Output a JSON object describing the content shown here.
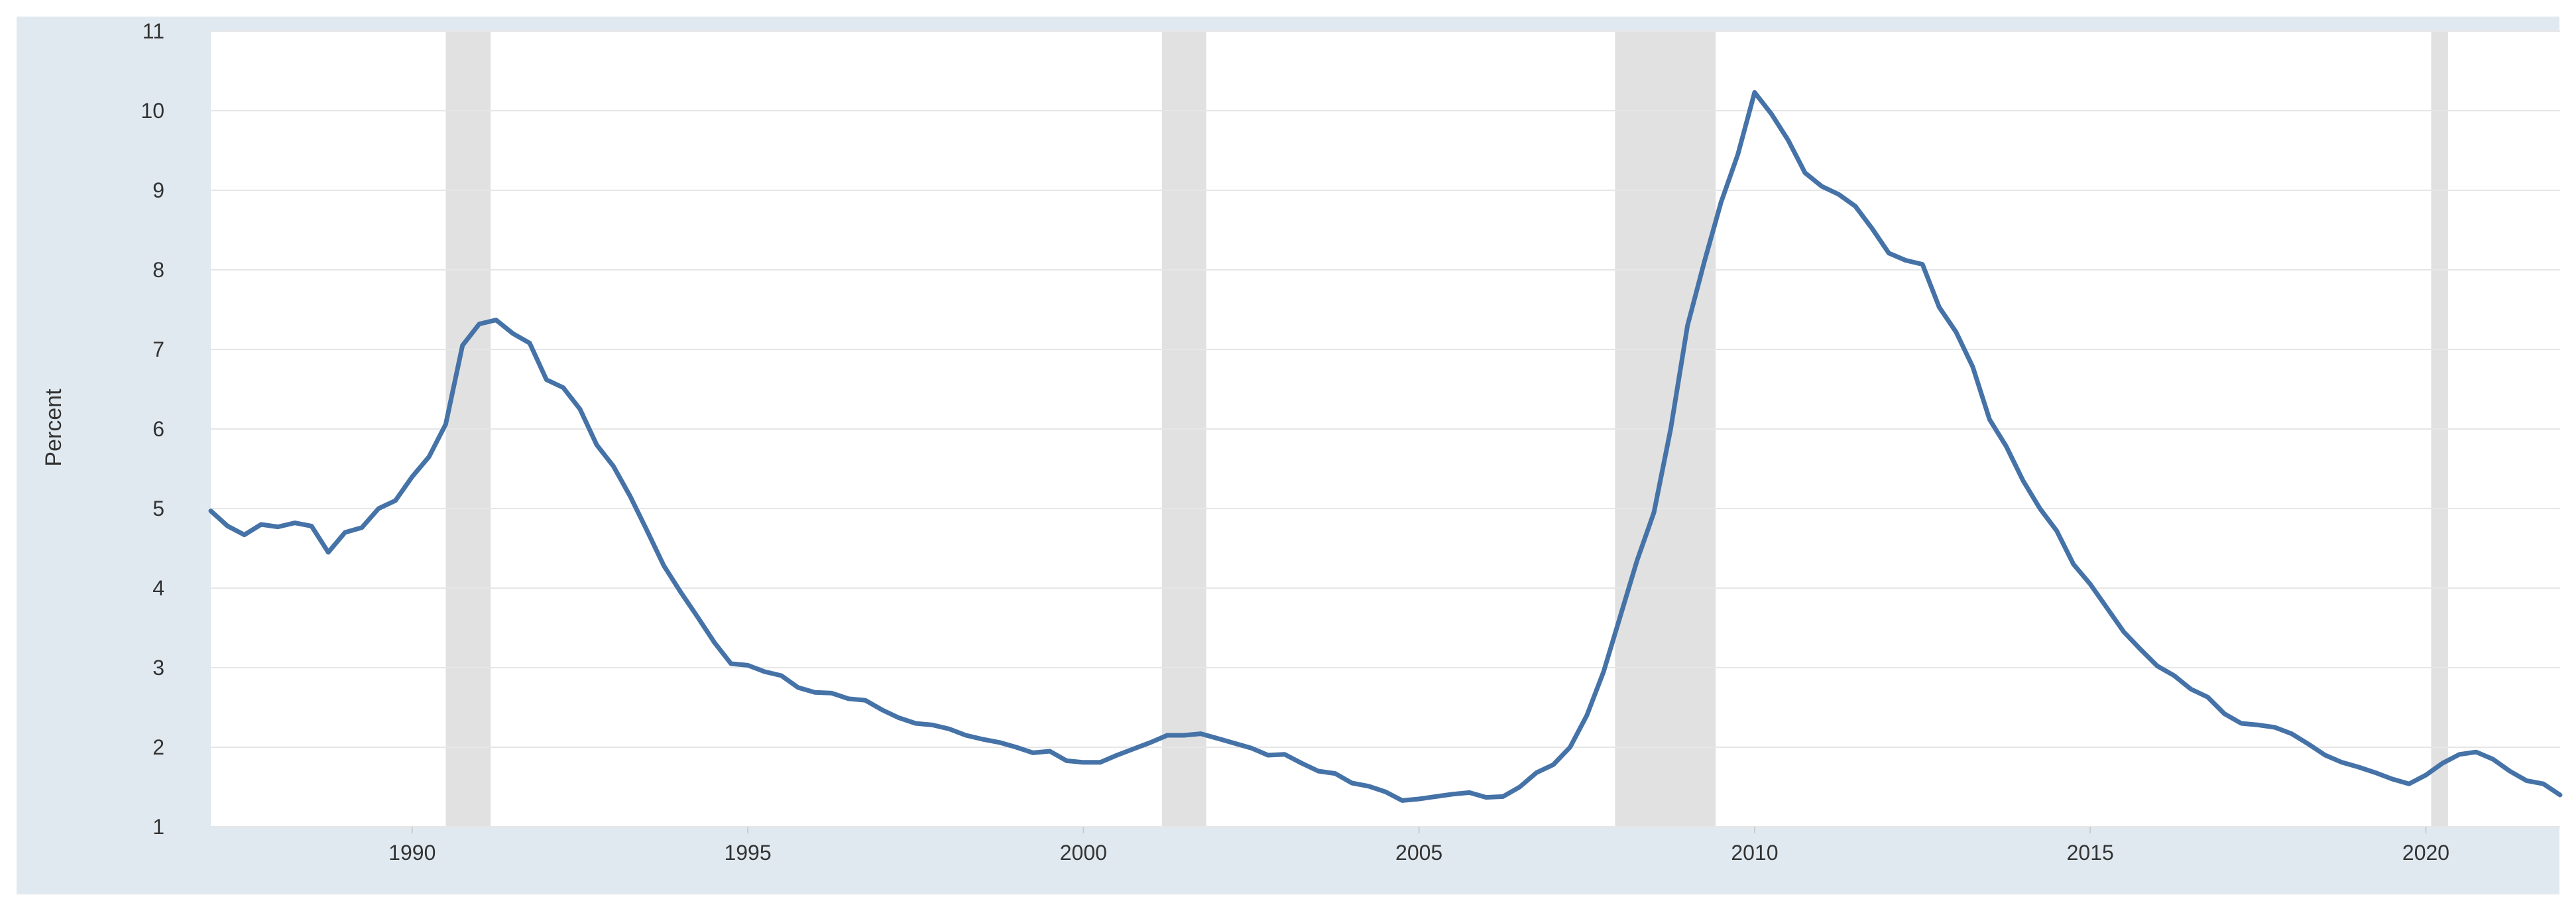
{
  "chart_data": {
    "type": "line",
    "title": "",
    "xlabel": "",
    "ylabel": "Percent",
    "xlim": [
      1987.0,
      2022.0
    ],
    "ylim": [
      1,
      11
    ],
    "grid": true,
    "legend": "none",
    "colors": {
      "line": "#4572a7",
      "recession": "#e1e1e1",
      "frame": "#e1e9f0",
      "grid": "#e6e6e6",
      "plot_bg": "#ffffff"
    },
    "x_ticks": [
      1990,
      1995,
      2000,
      2005,
      2010,
      2015,
      2020
    ],
    "y_ticks": [
      1,
      2,
      3,
      4,
      5,
      6,
      7,
      8,
      9,
      10,
      11
    ],
    "recessions": [
      [
        1990.5,
        1991.17
      ],
      [
        2001.17,
        2001.83
      ],
      [
        2007.92,
        2009.42
      ],
      [
        2020.08,
        2020.33
      ]
    ],
    "series": [
      {
        "x": [
          1987.0,
          1987.25,
          1987.5,
          1987.75,
          1988.0,
          1988.25,
          1988.5,
          1988.75,
          1989.0,
          1989.25,
          1989.5,
          1989.75,
          1990.0,
          1990.25,
          1990.5,
          1990.75,
          1991.0,
          1991.25,
          1991.5,
          1991.75,
          1992.0,
          1992.25,
          1992.5,
          1992.75,
          1993.0,
          1993.25,
          1993.5,
          1993.75,
          1994.0,
          1994.25,
          1994.5,
          1994.75,
          1995.0,
          1995.25,
          1995.5,
          1995.75,
          1996.0,
          1996.25,
          1996.5,
          1996.75,
          1997.0,
          1997.25,
          1997.5,
          1997.75,
          1998.0,
          1998.25,
          1998.5,
          1998.75,
          1999.0,
          1999.25,
          1999.5,
          1999.75,
          2000.0,
          2000.25,
          2000.5,
          2000.75,
          2001.0,
          2001.25,
          2001.5,
          2001.75,
          2002.0,
          2002.25,
          2002.5,
          2002.75,
          2003.0,
          2003.25,
          2003.5,
          2003.75,
          2004.0,
          2004.25,
          2004.5,
          2004.75,
          2005.0,
          2005.25,
          2005.5,
          2005.75,
          2006.0,
          2006.25,
          2006.5,
          2006.75,
          2007.0,
          2007.25,
          2007.5,
          2007.75,
          2008.0,
          2008.25,
          2008.5,
          2008.75,
          2009.0,
          2009.25,
          2009.5,
          2009.75,
          2010.0,
          2010.25,
          2010.5,
          2010.75,
          2011.0,
          2011.25,
          2011.5,
          2011.75,
          2012.0,
          2012.25,
          2012.5,
          2012.75,
          2013.0,
          2013.25,
          2013.5,
          2013.75,
          2014.0,
          2014.25,
          2014.5,
          2014.75,
          2015.0,
          2015.25,
          2015.5,
          2015.75,
          2016.0,
          2016.25,
          2016.5,
          2016.75,
          2017.0,
          2017.25,
          2017.5,
          2017.75,
          2018.0,
          2018.25,
          2018.5,
          2018.75,
          2019.0,
          2019.25,
          2019.5,
          2019.75,
          2020.0,
          2020.25,
          2020.5,
          2020.75,
          2021.0,
          2021.25,
          2021.5,
          2021.75,
          2022.0
        ],
        "values": [
          4.97,
          4.78,
          4.67,
          4.8,
          4.77,
          4.82,
          4.78,
          4.45,
          4.7,
          4.76,
          5.0,
          5.1,
          5.4,
          5.65,
          6.06,
          7.05,
          7.32,
          7.37,
          7.2,
          7.08,
          6.62,
          6.52,
          6.25,
          5.8,
          5.53,
          5.15,
          4.72,
          4.28,
          3.95,
          3.64,
          3.32,
          3.05,
          3.03,
          2.95,
          2.9,
          2.75,
          2.69,
          2.68,
          2.61,
          2.59,
          2.47,
          2.37,
          2.3,
          2.28,
          2.23,
          2.15,
          2.1,
          2.06,
          2.0,
          1.93,
          1.95,
          1.83,
          1.81,
          1.81,
          1.9,
          1.98,
          2.06,
          2.15,
          2.15,
          2.17,
          2.11,
          2.05,
          1.99,
          1.9,
          1.91,
          1.8,
          1.7,
          1.67,
          1.55,
          1.51,
          1.44,
          1.33,
          1.35,
          1.38,
          1.41,
          1.43,
          1.37,
          1.38,
          1.5,
          1.68,
          1.78,
          2.0,
          2.4,
          2.95,
          3.65,
          4.35,
          4.95,
          6.0,
          7.3,
          8.1,
          8.85,
          9.45,
          10.23,
          9.96,
          9.63,
          9.22,
          9.05,
          8.95,
          8.8,
          8.52,
          8.21,
          8.12,
          8.07,
          7.53,
          7.22,
          6.78,
          6.12,
          5.78,
          5.35,
          5.0,
          4.72,
          4.3,
          4.05,
          3.75,
          3.45,
          3.23,
          3.02,
          2.9,
          2.73,
          2.63,
          2.42,
          2.3,
          2.28,
          2.25,
          2.17,
          2.04,
          1.9,
          1.81,
          1.75,
          1.68,
          1.6,
          1.54,
          1.65,
          1.8,
          1.91,
          1.94,
          1.85,
          1.7,
          1.58,
          1.54,
          1.4
        ]
      }
    ]
  }
}
